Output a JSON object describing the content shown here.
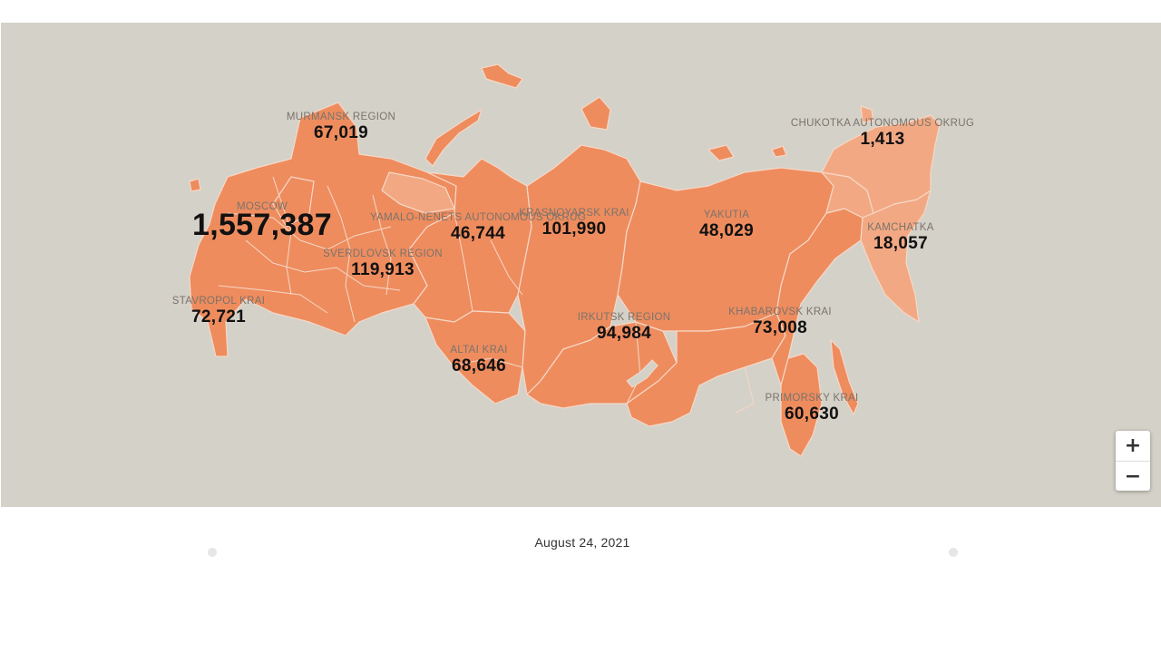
{
  "map": {
    "colors": {
      "background": "#d4d1c8",
      "region_dark": "#ee8c5e",
      "region_light": "#f2a983",
      "border": "#f6d8c7"
    },
    "regions": [
      {
        "name": "MURMANSK REGION",
        "value": "67,019"
      },
      {
        "name": "MOSCOW",
        "value": "1,557,387"
      },
      {
        "name": "STAVROPOL KRAI",
        "value": "72,721"
      },
      {
        "name": "SVERDLOVSK REGION",
        "value": "119,913"
      },
      {
        "name": "YAMALO-NENETS AUTONOMOUS OKRUG",
        "value": "46,744"
      },
      {
        "name": "KRASNOYARSK KRAI",
        "value": "101,990"
      },
      {
        "name": "ALTAI KRAI",
        "value": "68,646"
      },
      {
        "name": "IRKUTSK REGION",
        "value": "94,984"
      },
      {
        "name": "YAKUTIA",
        "value": "48,029"
      },
      {
        "name": "KHABAROVSK KRAI",
        "value": "73,008"
      },
      {
        "name": "PRIMORSKY KRAI",
        "value": "60,630"
      },
      {
        "name": "KAMCHATKA",
        "value": "18,057"
      },
      {
        "name": "CHUKOTKA AUTONOMOUS OKRUG",
        "value": "1,413"
      }
    ]
  },
  "zoom": {
    "in_label": "+",
    "out_label": "−"
  },
  "date": "August 24, 2021"
}
